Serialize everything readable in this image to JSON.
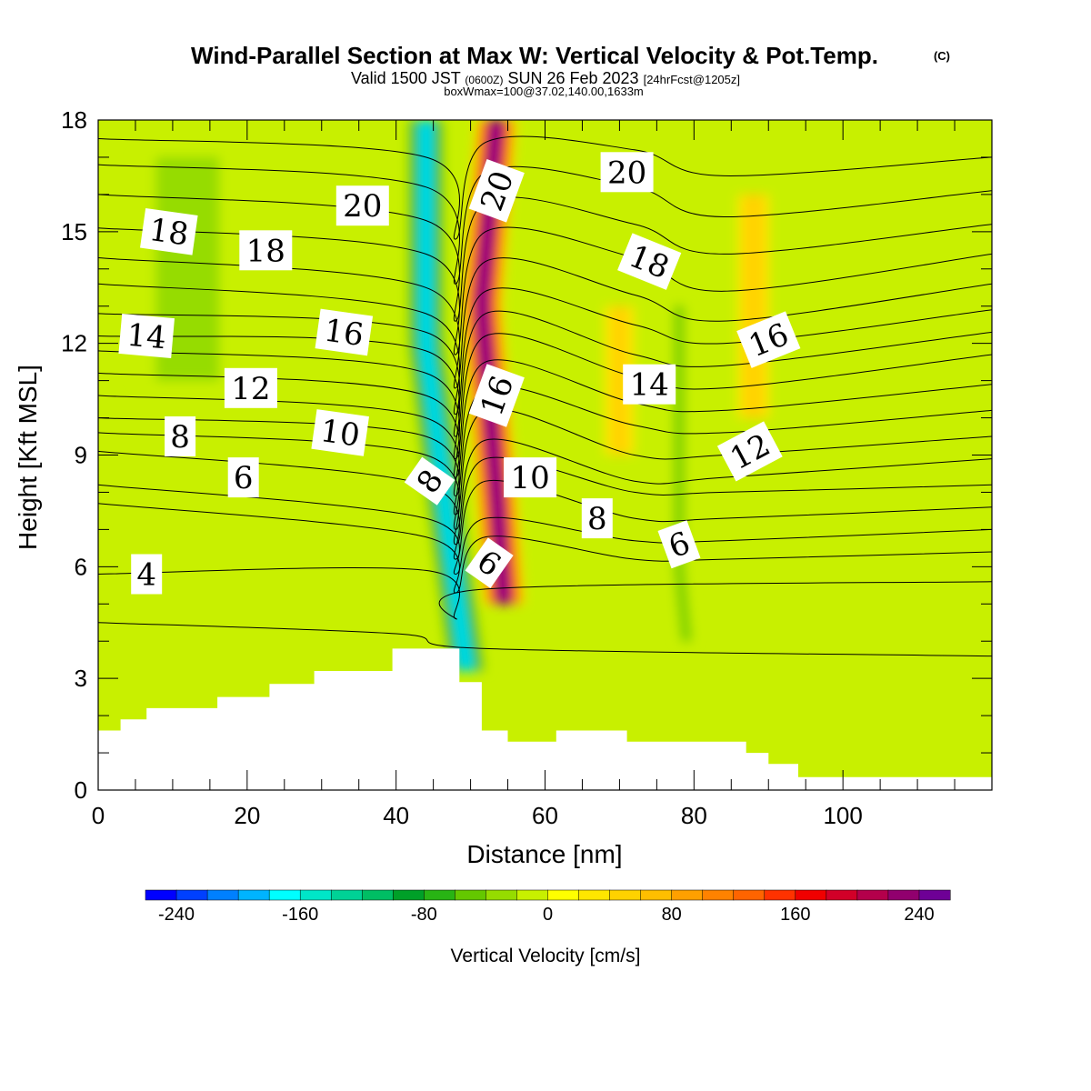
{
  "header": {
    "title": "Wind-Parallel Section at Max W: Vertical Velocity & Pot.Temp.",
    "copyright": "(C)",
    "valid_prefix": "Valid 1500 JST",
    "valid_zulu": "(0600Z)",
    "valid_date": "SUN 26 Feb 2023",
    "forecast": "[24hrFcst@1205z]",
    "box_info": "boxWmax=100@37.02,140.00,1633m"
  },
  "chart_data": {
    "type": "heatmap",
    "xlabel": "Distance [nm]",
    "ylabel": "Height [Kft MSL]",
    "xlim": [
      0,
      120
    ],
    "ylim": [
      0,
      18
    ],
    "x_ticks": [
      0,
      20,
      40,
      60,
      80,
      100
    ],
    "y_ticks": [
      0,
      3,
      6,
      9,
      12,
      15,
      18
    ],
    "x_tick_labels": [
      "0",
      "20",
      "40",
      "60",
      "80",
      "100"
    ],
    "y_tick_labels": [
      "0",
      "3",
      "6",
      "9",
      "12",
      "15",
      "18"
    ],
    "colorbar": {
      "label": "Vertical Velocity [cm/s]",
      "min": -260,
      "max": 260,
      "step": 20,
      "tick_values": [
        -240,
        -160,
        -80,
        0,
        80,
        160,
        240
      ],
      "tick_labels": [
        "-240",
        "-160",
        "-80",
        "0",
        "80",
        "160",
        "240"
      ],
      "colors": [
        "#0000ff",
        "#0040ff",
        "#0080ff",
        "#00b4ff",
        "#00ffff",
        "#00e6c8",
        "#00d296",
        "#00be64",
        "#00a028",
        "#28b414",
        "#64c800",
        "#96dc00",
        "#c8f000",
        "#ffff00",
        "#ffe600",
        "#ffd200",
        "#ffbe00",
        "#ffa000",
        "#ff8200",
        "#ff6400",
        "#ff3200",
        "#f00000",
        "#d20028",
        "#b4004b",
        "#91006e",
        "#6e0096"
      ]
    },
    "terrain_kft": {
      "x": [
        0,
        3,
        3,
        6.5,
        6.5,
        16,
        16,
        23,
        23,
        29,
        29,
        39.5,
        39.5,
        48.5,
        48.5,
        51.5,
        51.5,
        55,
        55,
        61.5,
        61.5,
        71,
        71,
        87,
        87,
        90,
        90,
        94,
        94,
        120
      ],
      "y": [
        1.6,
        1.6,
        1.9,
        1.9,
        2.2,
        2.2,
        2.5,
        2.5,
        2.85,
        2.85,
        3.2,
        3.2,
        3.8,
        3.8,
        2.9,
        2.9,
        1.6,
        1.6,
        1.3,
        1.3,
        1.6,
        1.6,
        1.3,
        1.3,
        1.0,
        1.0,
        0.7,
        0.7,
        0.35,
        0.35
      ]
    },
    "w_features": [
      {
        "type": "updraft",
        "x_path": [
          [
            53.5,
            18
          ],
          [
            51.5,
            13
          ],
          [
            53.5,
            8
          ],
          [
            54.5,
            5
          ]
        ],
        "width_nm": 6,
        "peak_cms": 260
      },
      {
        "type": "downdraft",
        "x_path": [
          [
            44,
            18
          ],
          [
            44,
            12
          ],
          [
            47,
            7
          ],
          [
            49.5,
            3.2
          ]
        ],
        "width_nm": 6,
        "peak_cms": -200
      },
      {
        "type": "updraft",
        "x_path": [
          [
            70,
            13
          ],
          [
            70,
            9
          ]
        ],
        "width_nm": 6,
        "peak_cms": 40
      },
      {
        "type": "downdraft",
        "x_path": [
          [
            78,
            13
          ],
          [
            78,
            6
          ],
          [
            79,
            4
          ]
        ],
        "width_nm": 3,
        "peak_cms": -60
      },
      {
        "type": "downdraft",
        "x_path": [
          [
            12,
            17
          ],
          [
            12,
            11
          ]
        ],
        "width_nm": 20,
        "peak_cms": -50
      },
      {
        "type": "updraft",
        "x_path": [
          [
            88,
            16
          ],
          [
            88,
            10
          ]
        ],
        "width_nm": 6,
        "peak_cms": 50
      }
    ],
    "theta_levels_c": [
      4,
      5,
      6,
      7,
      8,
      9,
      10,
      11,
      12,
      13,
      14,
      15,
      16,
      17,
      18,
      19,
      20,
      21
    ],
    "theta_contours": [
      {
        "value": 4,
        "x": [
          0,
          40,
          52,
          120
        ],
        "y": [
          4.5,
          4.2,
          3.8,
          3.6
        ]
      },
      {
        "value": 5,
        "x": [
          0,
          44,
          48,
          52,
          120
        ],
        "y": [
          5.8,
          5.9,
          4.6,
          5.4,
          5.6
        ]
      },
      {
        "value": 6,
        "x": [
          0,
          44,
          48,
          52,
          72,
          84,
          120
        ],
        "y": [
          7.7,
          6.8,
          5.3,
          6.8,
          6.2,
          6.2,
          6.4
        ]
      },
      {
        "value": 7,
        "x": [
          0,
          44,
          48,
          52,
          72,
          84,
          120
        ],
        "y": [
          8.2,
          7.3,
          5.8,
          7.3,
          6.7,
          6.7,
          7.0
        ]
      },
      {
        "value": 8,
        "x": [
          0,
          44,
          48,
          52,
          72,
          84,
          120
        ],
        "y": [
          9.1,
          8.2,
          6.2,
          8.3,
          7.3,
          7.3,
          7.6
        ]
      },
      {
        "value": 9,
        "x": [
          0,
          44,
          48,
          52,
          72,
          84,
          120
        ],
        "y": [
          9.6,
          9.0,
          6.6,
          8.9,
          8.0,
          8.0,
          8.2
        ]
      },
      {
        "value": 10,
        "x": [
          0,
          44,
          48,
          52,
          72,
          84,
          120
        ],
        "y": [
          10.0,
          9.5,
          7.0,
          9.4,
          8.3,
          8.4,
          8.9
        ]
      },
      {
        "value": 11,
        "x": [
          0,
          44,
          48,
          52,
          72,
          84,
          120
        ],
        "y": [
          10.6,
          10.0,
          7.4,
          10.2,
          9.0,
          9.0,
          9.5
        ]
      },
      {
        "value": 12,
        "x": [
          0,
          44,
          48,
          52,
          72,
          84,
          120
        ],
        "y": [
          11.2,
          10.6,
          7.9,
          10.8,
          9.8,
          9.6,
          10.2
        ]
      },
      {
        "value": 13,
        "x": [
          0,
          44,
          48,
          52,
          72,
          84,
          120
        ],
        "y": [
          11.8,
          11.2,
          8.4,
          11.5,
          10.4,
          10.2,
          10.9
        ]
      },
      {
        "value": 14,
        "x": [
          0,
          44,
          48,
          52,
          72,
          84,
          120
        ],
        "y": [
          12.2,
          11.8,
          8.9,
          12.2,
          11.1,
          10.8,
          11.7
        ]
      },
      {
        "value": 15,
        "x": [
          0,
          44,
          48,
          52,
          72,
          84,
          120
        ],
        "y": [
          12.8,
          12.3,
          9.5,
          12.8,
          11.7,
          11.4,
          12.3
        ]
      },
      {
        "value": 16,
        "x": [
          0,
          44,
          48,
          52,
          72,
          84,
          120
        ],
        "y": [
          13.6,
          12.8,
          10.1,
          13.4,
          12.5,
          12.0,
          12.9
        ]
      },
      {
        "value": 17,
        "x": [
          0,
          44,
          48,
          52,
          72,
          84,
          120
        ],
        "y": [
          14.3,
          13.5,
          10.8,
          14.2,
          13.3,
          12.6,
          13.6
        ]
      },
      {
        "value": 18,
        "x": [
          0,
          44,
          48,
          52,
          72,
          84,
          120
        ],
        "y": [
          15.1,
          14.4,
          11.7,
          15.0,
          14.3,
          13.4,
          14.4
        ]
      },
      {
        "value": 19,
        "x": [
          0,
          44,
          48,
          52,
          72,
          84,
          120
        ],
        "y": [
          16.0,
          15.3,
          12.6,
          15.8,
          15.2,
          14.4,
          15.2
        ]
      },
      {
        "value": 20,
        "x": [
          0,
          44,
          48,
          52,
          72,
          84,
          120
        ],
        "y": [
          16.8,
          16.2,
          13.6,
          16.6,
          16.2,
          15.4,
          16.1
        ]
      },
      {
        "value": 21,
        "x": [
          0,
          44,
          48,
          52,
          72,
          84,
          120
        ],
        "y": [
          17.5,
          17.0,
          14.8,
          17.4,
          17.2,
          16.5,
          17.0
        ]
      }
    ],
    "theta_labels": [
      {
        "text": "4",
        "x": 6.5,
        "y": 5.8,
        "angle": 0
      },
      {
        "text": "6",
        "x": 19.5,
        "y": 8.4,
        "angle": 0
      },
      {
        "text": "8",
        "x": 11,
        "y": 9.5,
        "angle": 0
      },
      {
        "text": "12",
        "x": 20.5,
        "y": 10.8,
        "angle": 0
      },
      {
        "text": "14",
        "x": 6.5,
        "y": 12.2,
        "angle": 5
      },
      {
        "text": "18",
        "x": 9.5,
        "y": 15.0,
        "angle": 8
      },
      {
        "text": "18",
        "x": 22.5,
        "y": 14.5,
        "angle": 0
      },
      {
        "text": "16",
        "x": 33,
        "y": 12.3,
        "angle": 8
      },
      {
        "text": "10",
        "x": 32.5,
        "y": 9.6,
        "angle": 8
      },
      {
        "text": "20",
        "x": 35.5,
        "y": 15.7,
        "angle": 0
      },
      {
        "text": "8",
        "x": 44.5,
        "y": 8.3,
        "angle": -55
      },
      {
        "text": "20",
        "x": 53.5,
        "y": 16.1,
        "angle": -70
      },
      {
        "text": "16",
        "x": 53.5,
        "y": 10.6,
        "angle": -70
      },
      {
        "text": "6",
        "x": 52.5,
        "y": 6.1,
        "angle": 35
      },
      {
        "text": "10",
        "x": 58,
        "y": 8.4,
        "angle": 0
      },
      {
        "text": "8",
        "x": 67,
        "y": 7.3,
        "angle": 0
      },
      {
        "text": "20",
        "x": 71,
        "y": 16.6,
        "angle": 0
      },
      {
        "text": "18",
        "x": 74,
        "y": 14.2,
        "angle": 22
      },
      {
        "text": "14",
        "x": 74,
        "y": 10.9,
        "angle": 0
      },
      {
        "text": "6",
        "x": 78,
        "y": 6.6,
        "angle": -20
      },
      {
        "text": "16",
        "x": 90,
        "y": 12.1,
        "angle": -22
      },
      {
        "text": "12",
        "x": 87.5,
        "y": 9.1,
        "angle": -28
      }
    ]
  }
}
